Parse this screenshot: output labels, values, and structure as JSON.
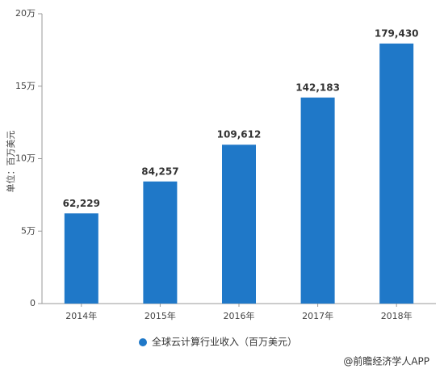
{
  "chart_data": {
    "type": "bar",
    "y_label": "单位：百万美元",
    "categories": [
      "2014年",
      "2015年",
      "2016年",
      "2017年",
      "2018年"
    ],
    "series": [
      {
        "name": "全球云计算行业收入（百万美元）",
        "color": "#1f78c8",
        "values": [
          62229,
          84257,
          109612,
          142183,
          179430
        ],
        "value_labels": [
          "62,229",
          "84,257",
          "109,612",
          "142,183",
          "179,430"
        ]
      }
    ],
    "ylim": [
      0,
      200000
    ],
    "yticks": [
      0,
      {
        "value": 50000,
        "label": "5万"
      },
      {
        "value": 100000,
        "label": "10万"
      },
      {
        "value": 150000,
        "label": "15万"
      },
      {
        "value": 200000,
        "label": "20万"
      }
    ],
    "legend": "bottom",
    "source": "@前瞻经济学人APP"
  }
}
